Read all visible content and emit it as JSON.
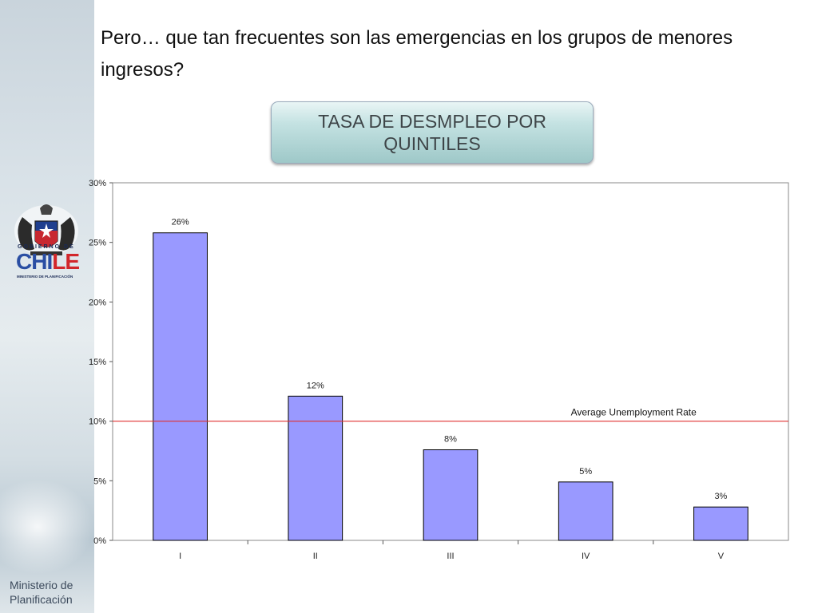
{
  "heading": "Pero… que tan frecuentes son las emergencias  en los grupos de menores ingresos?",
  "banner": "TASA DE DESMPLEO POR QUINTILES",
  "logo": {
    "line1": "GOBIERNO DE",
    "word_c1": "CHI",
    "word_c2": "LE",
    "line3": "MINISTERIO DE PLANIFICACIÓN"
  },
  "footer": {
    "line1": "Ministerio de",
    "line2": "Planificación"
  },
  "chart_data": {
    "type": "bar",
    "categories": [
      "I",
      "II",
      "III",
      "IV",
      "V"
    ],
    "values": [
      25.8,
      12.1,
      7.6,
      4.9,
      2.8
    ],
    "data_labels": [
      "26%",
      "12%",
      "8%",
      "5%",
      "3%"
    ],
    "yticks": [
      "0%",
      "5%",
      "10%",
      "15%",
      "20%",
      "25%",
      "30%"
    ],
    "ylim": [
      0,
      30
    ],
    "reference_line": {
      "value": 10,
      "label": "Average Unemployment Rate",
      "color": "#e03030"
    },
    "bar_color": "#9999ff",
    "title": "",
    "xlabel": "",
    "ylabel": ""
  }
}
